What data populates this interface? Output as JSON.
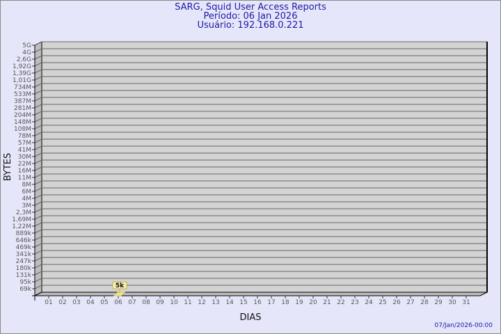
{
  "chart_data": {
    "type": "bar",
    "title": "SARG, Squid User Access Reports",
    "subtitle_period": "Período: 06 Jan 2026",
    "subtitle_user": "Usuário: 192.168.0.221",
    "xlabel": "DIAS",
    "ylabel": "BYTES",
    "y_scale": "log",
    "y_ticks": [
      "5G",
      "4G",
      "2,6G",
      "1,92G",
      "1,39G",
      "1,01G",
      "734M",
      "533M",
      "387M",
      "281M",
      "204M",
      "148M",
      "108M",
      "78M",
      "57M",
      "41M",
      "30M",
      "22M",
      "16M",
      "11M",
      "8M",
      "6M",
      "4M",
      "3M",
      "2,3M",
      "1,69M",
      "1,22M",
      "889k",
      "646k",
      "469k",
      "341k",
      "247k",
      "180k",
      "131k",
      "95k",
      "69k"
    ],
    "categories": [
      "01",
      "02",
      "03",
      "04",
      "05",
      "06",
      "07",
      "08",
      "09",
      "10",
      "11",
      "12",
      "13",
      "14",
      "15",
      "16",
      "17",
      "18",
      "19",
      "20",
      "21",
      "22",
      "23",
      "24",
      "25",
      "26",
      "27",
      "28",
      "29",
      "30",
      "31"
    ],
    "bars": [
      {
        "category": "06",
        "value": 5000,
        "label": "5k"
      }
    ],
    "grid": true,
    "colors": {
      "background": "#e6e6fa",
      "plot": "#d3d3d3",
      "bar": "#f5e58a",
      "title": "#1a1aa6"
    },
    "footer": "07/Jan/2026-00:00"
  }
}
